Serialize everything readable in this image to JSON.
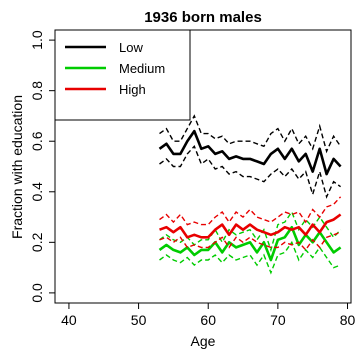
{
  "chart_data": {
    "type": "line",
    "title": "1936 born males",
    "xlabel": "Age",
    "ylabel": "Fraction with education",
    "xlim": [
      38,
      80.5
    ],
    "ylim": [
      -0.04,
      1.04
    ],
    "xticks": [
      40,
      50,
      60,
      70,
      80
    ],
    "yticks": [
      0.0,
      0.2,
      0.4,
      0.6,
      0.8,
      1.0
    ],
    "x_tick_labels": [
      "40",
      "50",
      "60",
      "70",
      "80"
    ],
    "y_tick_labels": [
      "0.0",
      "0.2",
      "0.4",
      "0.6",
      "0.8",
      "1.0"
    ],
    "grid": false,
    "legend_position": "top-left",
    "x": [
      53,
      54,
      55,
      56,
      57,
      58,
      59,
      60,
      61,
      62,
      63,
      64,
      65,
      66,
      67,
      68,
      69,
      70,
      71,
      72,
      73,
      74,
      75,
      76,
      77,
      78,
      79
    ],
    "series": [
      {
        "name": "Low",
        "color": "#000000",
        "values": [
          0.57,
          0.59,
          0.55,
          0.55,
          0.6,
          0.64,
          0.57,
          0.58,
          0.55,
          0.56,
          0.53,
          0.54,
          0.53,
          0.53,
          0.52,
          0.51,
          0.55,
          0.57,
          0.53,
          0.57,
          0.52,
          0.55,
          0.48,
          0.57,
          0.47,
          0.53,
          0.5
        ],
        "ci_upper": [
          0.63,
          0.65,
          0.6,
          0.6,
          0.65,
          0.7,
          0.63,
          0.63,
          0.61,
          0.62,
          0.59,
          0.6,
          0.6,
          0.6,
          0.59,
          0.58,
          0.63,
          0.65,
          0.6,
          0.65,
          0.59,
          0.62,
          0.57,
          0.66,
          0.56,
          0.62,
          0.58
        ],
        "ci_lower": [
          0.51,
          0.53,
          0.5,
          0.5,
          0.55,
          0.58,
          0.51,
          0.53,
          0.49,
          0.5,
          0.47,
          0.48,
          0.46,
          0.46,
          0.45,
          0.44,
          0.47,
          0.49,
          0.46,
          0.49,
          0.45,
          0.48,
          0.39,
          0.48,
          0.38,
          0.44,
          0.42
        ]
      },
      {
        "name": "Medium",
        "color": "#00cc00",
        "values": [
          0.17,
          0.19,
          0.17,
          0.16,
          0.18,
          0.15,
          0.17,
          0.17,
          0.2,
          0.16,
          0.2,
          0.18,
          0.19,
          0.2,
          0.16,
          0.2,
          0.13,
          0.21,
          0.22,
          0.26,
          0.19,
          0.23,
          0.2,
          0.24,
          0.2,
          0.16,
          0.18
        ],
        "ci_upper": [
          0.21,
          0.23,
          0.21,
          0.2,
          0.22,
          0.19,
          0.21,
          0.21,
          0.25,
          0.2,
          0.25,
          0.23,
          0.24,
          0.25,
          0.21,
          0.25,
          0.17,
          0.27,
          0.28,
          0.32,
          0.25,
          0.29,
          0.26,
          0.3,
          0.26,
          0.22,
          0.25
        ],
        "ci_lower": [
          0.13,
          0.15,
          0.13,
          0.12,
          0.14,
          0.11,
          0.13,
          0.13,
          0.15,
          0.12,
          0.15,
          0.13,
          0.14,
          0.15,
          0.11,
          0.15,
          0.08,
          0.15,
          0.16,
          0.2,
          0.13,
          0.17,
          0.14,
          0.18,
          0.14,
          0.1,
          0.11
        ]
      },
      {
        "name": "High",
        "color": "#e80000",
        "values": [
          0.25,
          0.26,
          0.24,
          0.26,
          0.22,
          0.23,
          0.22,
          0.22,
          0.25,
          0.27,
          0.23,
          0.27,
          0.25,
          0.27,
          0.25,
          0.24,
          0.23,
          0.24,
          0.26,
          0.25,
          0.26,
          0.23,
          0.27,
          0.24,
          0.28,
          0.29,
          0.31
        ],
        "ci_upper": [
          0.29,
          0.31,
          0.28,
          0.31,
          0.27,
          0.28,
          0.27,
          0.27,
          0.3,
          0.32,
          0.28,
          0.32,
          0.3,
          0.33,
          0.3,
          0.29,
          0.28,
          0.3,
          0.32,
          0.31,
          0.32,
          0.28,
          0.33,
          0.3,
          0.34,
          0.35,
          0.38
        ],
        "ci_lower": [
          0.21,
          0.22,
          0.2,
          0.22,
          0.18,
          0.19,
          0.18,
          0.18,
          0.2,
          0.22,
          0.18,
          0.22,
          0.2,
          0.22,
          0.2,
          0.19,
          0.18,
          0.18,
          0.2,
          0.19,
          0.2,
          0.17,
          0.21,
          0.18,
          0.22,
          0.23,
          0.24
        ]
      }
    ]
  }
}
